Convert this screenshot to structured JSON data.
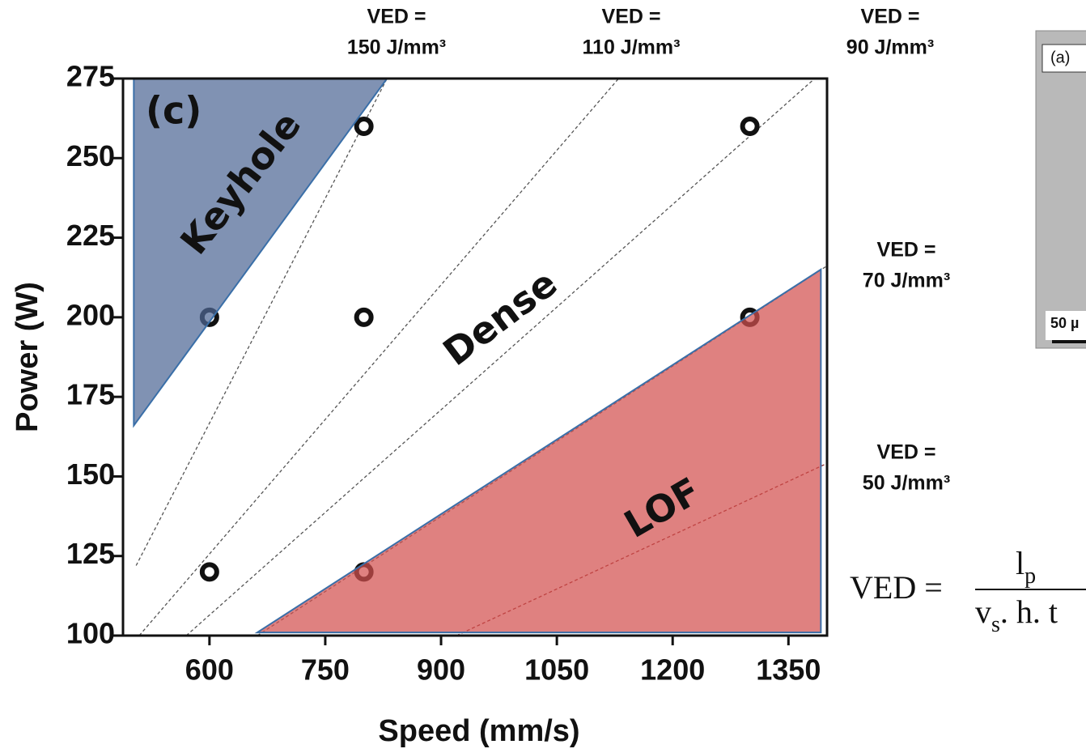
{
  "chart_data": {
    "type": "scatter",
    "x_label": "Speed (mm/s)",
    "y_label": "Power (W)",
    "xlim": [
      488,
      1400
    ],
    "ylim": [
      100,
      275
    ],
    "xticks": [
      600,
      750,
      900,
      1050,
      1200,
      1350
    ],
    "yticks": [
      100,
      125,
      150,
      175,
      200,
      225,
      250,
      275
    ],
    "x": [
      600,
      600,
      800,
      800,
      800,
      1300,
      1300
    ],
    "values": [
      200,
      120,
      260,
      200,
      120,
      260,
      200
    ],
    "color": "#111111",
    "regions": [
      {
        "label": "Keyhole",
        "color": "#4f6896",
        "x": [
          502,
          830,
          502
        ],
        "y": [
          275,
          275,
          166
        ]
      },
      {
        "label": "LOF",
        "color": "#d3504f",
        "x": [
          662,
          1392,
          1392
        ],
        "y": [
          101,
          215,
          101
        ]
      }
    ],
    "lines": [
      {
        "color": "#555555",
        "x": [
          505,
          830
        ],
        "y": [
          122,
          275
        ]
      },
      {
        "color": "#555555",
        "x": [
          509,
          1130
        ],
        "y": [
          100,
          275
        ]
      },
      {
        "color": "#555555",
        "x": [
          570,
          1384
        ],
        "y": [
          100,
          275
        ]
      },
      {
        "color": "#555555",
        "x": [
          662,
          1399
        ],
        "y": [
          100,
          216
        ]
      },
      {
        "color": "#8b2020",
        "x": [
          920,
          1399
        ],
        "y": [
          100,
          154
        ]
      }
    ],
    "annotations": [
      "(c)",
      "Dense"
    ],
    "ved_labels": [
      [
        "VED =",
        "150 J/mm³"
      ],
      [
        "VED =",
        "110 J/mm³"
      ],
      [
        "VED =",
        "90 J/mm³"
      ],
      [
        "VED =",
        "70 J/mm³"
      ],
      [
        "VED =",
        "50 J/mm³"
      ]
    ]
  },
  "equation": {
    "lhs": "VED =",
    "numerator": "l",
    "numerator_sub": "p",
    "denominator": "v",
    "denominator_sub": "s",
    "denominator_rest": ". h. t"
  },
  "inset": {
    "label": "(a)",
    "scale": "50 µ"
  }
}
